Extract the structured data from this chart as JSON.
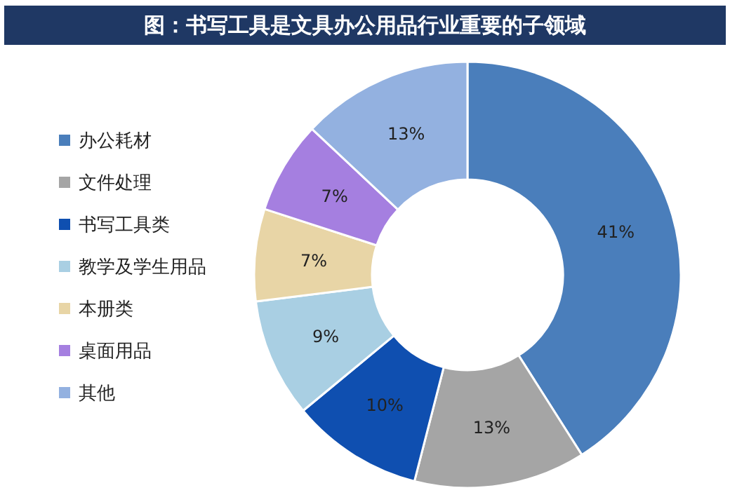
{
  "chart_data": {
    "type": "donut",
    "title": "图：书写工具是文具办公用品行业重要的子领域",
    "categories": [
      "办公耗材",
      "文件处理",
      "书写工具类",
      "教学及学生用品",
      "本册类",
      "桌面用品",
      "其他"
    ],
    "values": [
      41,
      13,
      10,
      9,
      7,
      7,
      13
    ],
    "value_labels": [
      "41%",
      "13%",
      "10%",
      "9%",
      "7%",
      "7%",
      "13%"
    ],
    "colors": [
      "#4a7ebb",
      "#a5a5a5",
      "#0f4fb0",
      "#a9cfe3",
      "#e8d5a6",
      "#a57fe0",
      "#93b1e0"
    ],
    "legend": "left"
  }
}
